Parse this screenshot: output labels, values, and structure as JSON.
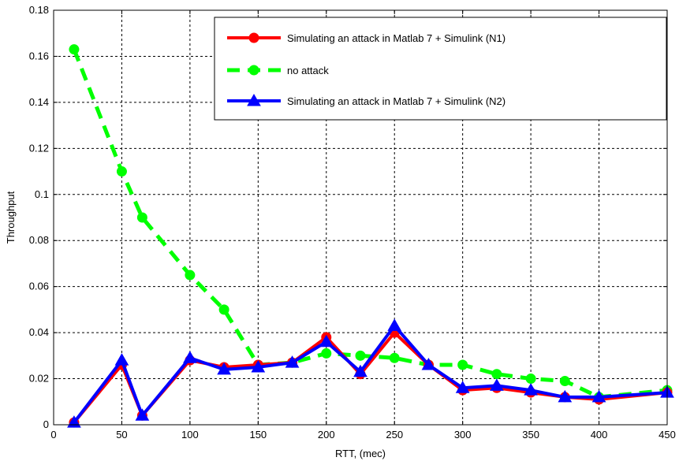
{
  "chart_data": {
    "type": "line",
    "title": "",
    "xlabel": "RTT, (mec)",
    "ylabel": "Throughput",
    "xlim": [
      0,
      450
    ],
    "ylim": [
      0,
      0.18
    ],
    "xticks": [
      0,
      50,
      100,
      150,
      200,
      250,
      300,
      350,
      400,
      450
    ],
    "yticks": [
      0,
      0.02,
      0.04,
      0.06,
      0.08,
      0.1,
      0.12,
      0.14,
      0.16,
      0.18
    ],
    "xtick_labels": [
      "0",
      "50",
      "100",
      "150",
      "200",
      "250",
      "300",
      "350",
      "400",
      "450"
    ],
    "ytick_labels": [
      "0",
      "0.02",
      "0.04",
      "0.06",
      "0.08",
      "0.1",
      "0.12",
      "0.14",
      "0.16",
      "0.18"
    ],
    "grid": true,
    "legend_position": "top-right",
    "x": [
      15,
      50,
      65,
      100,
      125,
      150,
      175,
      200,
      225,
      250,
      275,
      300,
      325,
      350,
      375,
      400,
      450
    ],
    "series": [
      {
        "name": "Simulating an attack in Matlab 7 + Simulink (N1)",
        "color": "#ff0000",
        "marker": "circle",
        "dashed": false,
        "values": [
          0.001,
          0.026,
          0.004,
          0.028,
          0.025,
          0.026,
          0.027,
          0.038,
          0.022,
          0.04,
          0.026,
          0.015,
          0.016,
          0.014,
          0.012,
          0.011,
          0.014
        ]
      },
      {
        "name": "no attack",
        "color": "#00ff00",
        "marker": "circle",
        "dashed": true,
        "values": [
          0.163,
          0.11,
          0.09,
          0.065,
          0.05,
          0.026,
          0.027,
          0.031,
          0.03,
          0.029,
          0.026,
          0.026,
          0.022,
          0.02,
          0.019,
          0.012,
          0.015
        ]
      },
      {
        "name": "Simulating an attack in Matlab 7 + Simulink (N2)",
        "color": "#0000ff",
        "marker": "triangle",
        "dashed": false,
        "values": [
          0.001,
          0.028,
          0.004,
          0.029,
          0.024,
          0.025,
          0.027,
          0.036,
          0.023,
          0.043,
          0.026,
          0.016,
          0.017,
          0.015,
          0.012,
          0.012,
          0.014
        ]
      }
    ]
  }
}
